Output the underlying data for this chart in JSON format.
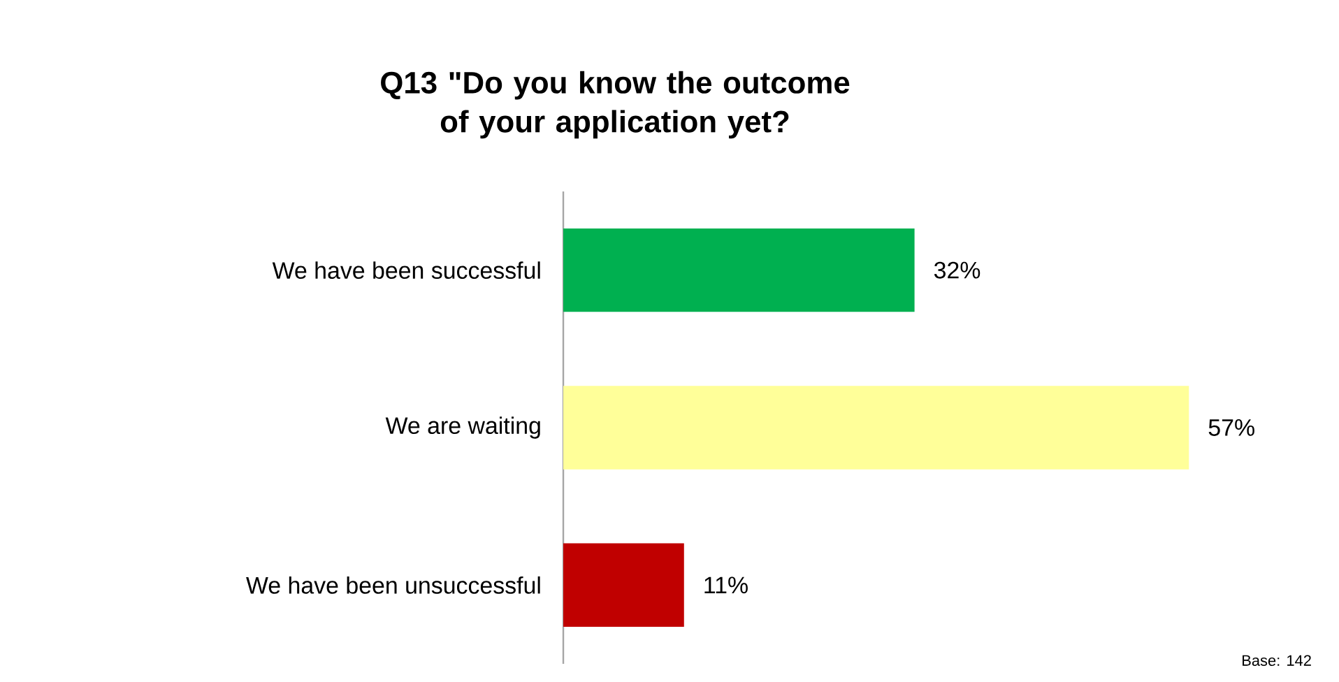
{
  "chart_data": {
    "type": "bar",
    "orientation": "horizontal",
    "title": "Q13 \"Do you know the outcome of your application yet?",
    "categories": [
      "We have been successful",
      "We are waiting",
      "We have been unsuccessful"
    ],
    "values": [
      32,
      57,
      11
    ],
    "colors": [
      "#00b050",
      "#ffff99",
      "#c00000"
    ],
    "value_labels": [
      "32%",
      "57%",
      "11%"
    ],
    "tick_labels": "y",
    "annotations": [
      "Base: 142"
    ]
  }
}
